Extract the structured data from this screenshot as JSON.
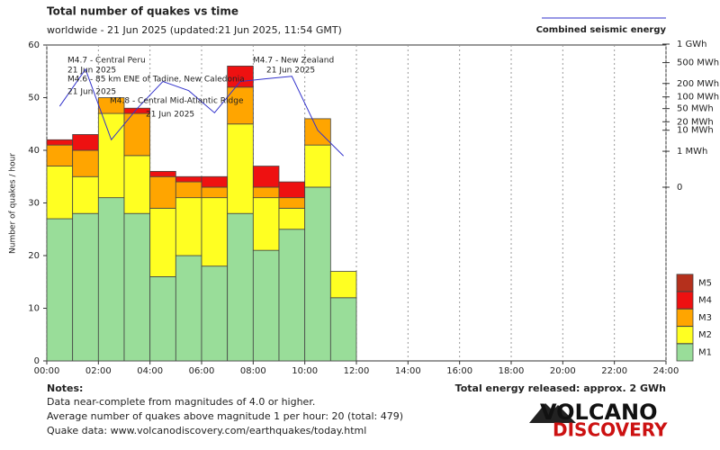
{
  "chart_data": {
    "type": "stacked_histogram",
    "title": "Total number of quakes vs time",
    "subtitle": "worldwide - 21 Jun 2025 (updated:21 Jun 2025, 11:54 GMT)",
    "y_label": "Number of quakes / hour",
    "bins": [
      0,
      1,
      2,
      3,
      4,
      5,
      6,
      7,
      8,
      9,
      10,
      11,
      12
    ],
    "series": [
      {
        "name": "M1",
        "color": "#99dd99",
        "values": [
          27,
          28,
          31,
          28,
          16,
          20,
          18,
          28,
          21,
          25,
          33,
          12
        ]
      },
      {
        "name": "M2",
        "color": "#ffff22",
        "values": [
          10,
          7,
          16,
          11,
          13,
          11,
          13,
          17,
          10,
          4,
          8,
          5
        ]
      },
      {
        "name": "M3",
        "color": "#ffa500",
        "values": [
          4,
          5,
          3,
          8,
          6,
          3,
          2,
          7,
          2,
          2,
          5,
          0
        ]
      },
      {
        "name": "M4",
        "color": "#ee1111",
        "values": [
          1,
          3,
          0,
          1,
          1,
          1,
          2,
          4,
          4,
          3,
          0,
          0
        ]
      },
      {
        "name": "M5",
        "color": "#b5301c",
        "values": [
          0,
          0,
          0,
          0,
          0,
          0,
          0,
          0,
          0,
          0,
          0,
          0
        ]
      }
    ],
    "energy": {
      "name": "Combined seismic energy",
      "color": "#3333cc",
      "axis": "y2",
      "x": [
        0.5,
        1.5,
        2.5,
        3.5,
        4.5,
        5.5,
        6.5,
        7.5,
        8.5,
        9.5,
        10.5,
        11.5
      ],
      "values": [
        58,
        380,
        4,
        50,
        220,
        140,
        38,
        220,
        250,
        280,
        10,
        0.5
      ]
    },
    "xlim": [
      0,
      24
    ],
    "xticks": [
      {
        "value": 0,
        "label": "00:00"
      },
      {
        "value": 2,
        "label": "02:00"
      },
      {
        "value": 4,
        "label": "04:00"
      },
      {
        "value": 6,
        "label": "06:00"
      },
      {
        "value": 8,
        "label": "08:00"
      },
      {
        "value": 10,
        "label": "10:00"
      },
      {
        "value": 12,
        "label": "12:00"
      },
      {
        "value": 14,
        "label": "14:00"
      },
      {
        "value": 16,
        "label": "16:00"
      },
      {
        "value": 18,
        "label": "18:00"
      },
      {
        "value": 20,
        "label": "20:00"
      },
      {
        "value": 22,
        "label": "22:00"
      },
      {
        "value": 24,
        "label": "24:00"
      }
    ],
    "ylim": [
      0,
      60
    ],
    "yticks": [
      0,
      10,
      20,
      30,
      40,
      50,
      60
    ],
    "y2lim": [
      0,
      1000
    ],
    "y2scale": "power",
    "y2exponent": 0.2,
    "y2ticks": [
      0,
      {
        "value": 1,
        "label": "1 MWh"
      },
      {
        "value": 10,
        "label": "10 MWh"
      },
      {
        "value": 20,
        "label": "20 MWh"
      },
      {
        "value": 50,
        "label": "50 MWh"
      },
      {
        "value": 100,
        "label": "100 MWh"
      },
      {
        "value": 200,
        "label": "200 MWh"
      },
      {
        "value": 500,
        "label": "500 MWh"
      },
      {
        "value": 1000,
        "label": "1 GWh"
      }
    ],
    "grid": true,
    "annotations": [
      {
        "text": "M4.7 - Central Peru",
        "date": "21 Jun 2025"
      },
      {
        "text": "M4.6 - 85 km ENE of Tadine, New Caledonia",
        "date": "21 Jun 2025"
      },
      {
        "text": "M4.8 - Central Mid-Atlantic Ridge",
        "date": "21 Jun 2025"
      },
      {
        "text": "M4.7 - New Zealand",
        "date": "21 Jun 2025"
      }
    ],
    "notes_title": "Notes:",
    "notes": [
      "Data near-complete from magnitudes of 4.0 or higher.",
      "Average number of quakes above magnitude 1 per hour: 20 (total: 479)",
      "Quake data: www.volcanodiscovery.com/earthquakes/today.html"
    ],
    "total_energy": "Total energy released: approx. 2 GWh",
    "logo": [
      "VOLCANO",
      "DISCOVERY"
    ]
  }
}
